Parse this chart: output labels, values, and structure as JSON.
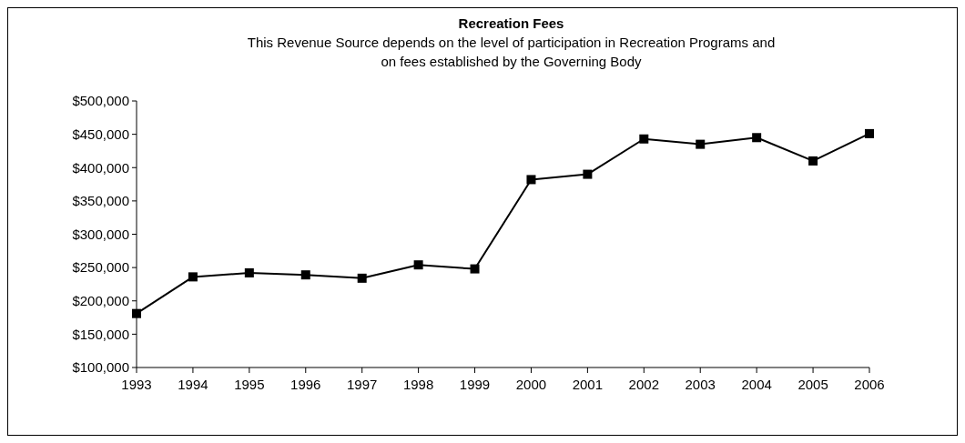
{
  "chart_data": {
    "type": "line",
    "title": "Recreation Fees",
    "subtitle": "This Revenue Source depends on the level of participation in Recreation Programs and\non fees established by the Governing Body",
    "categories": [
      "1993",
      "1994",
      "1995",
      "1996",
      "1997",
      "1998",
      "1999",
      "2000",
      "2001",
      "2002",
      "2003",
      "2004",
      "2005",
      "2006"
    ],
    "series": [
      {
        "color": "#000000",
        "values": [
          181000,
          236000,
          242000,
          239000,
          234000,
          254000,
          248000,
          382000,
          390000,
          443000,
          435000,
          445000,
          410000,
          451000
        ]
      }
    ],
    "ylim": [
      100000,
      500000
    ],
    "yticks": [
      {
        "value": 100000,
        "label": "$100,000"
      },
      {
        "value": 150000,
        "label": "$150,000"
      },
      {
        "value": 200000,
        "label": "$200,000"
      },
      {
        "value": 250000,
        "label": "$250,000"
      },
      {
        "value": 300000,
        "label": "$300,000"
      },
      {
        "value": 350000,
        "label": "$350,000"
      },
      {
        "value": 400000,
        "label": "$400,000"
      },
      {
        "value": 450000,
        "label": "$450,000"
      },
      {
        "value": 500000,
        "label": "$500,000"
      }
    ],
    "grid": false,
    "marker": "square",
    "line_style": "solid"
  }
}
